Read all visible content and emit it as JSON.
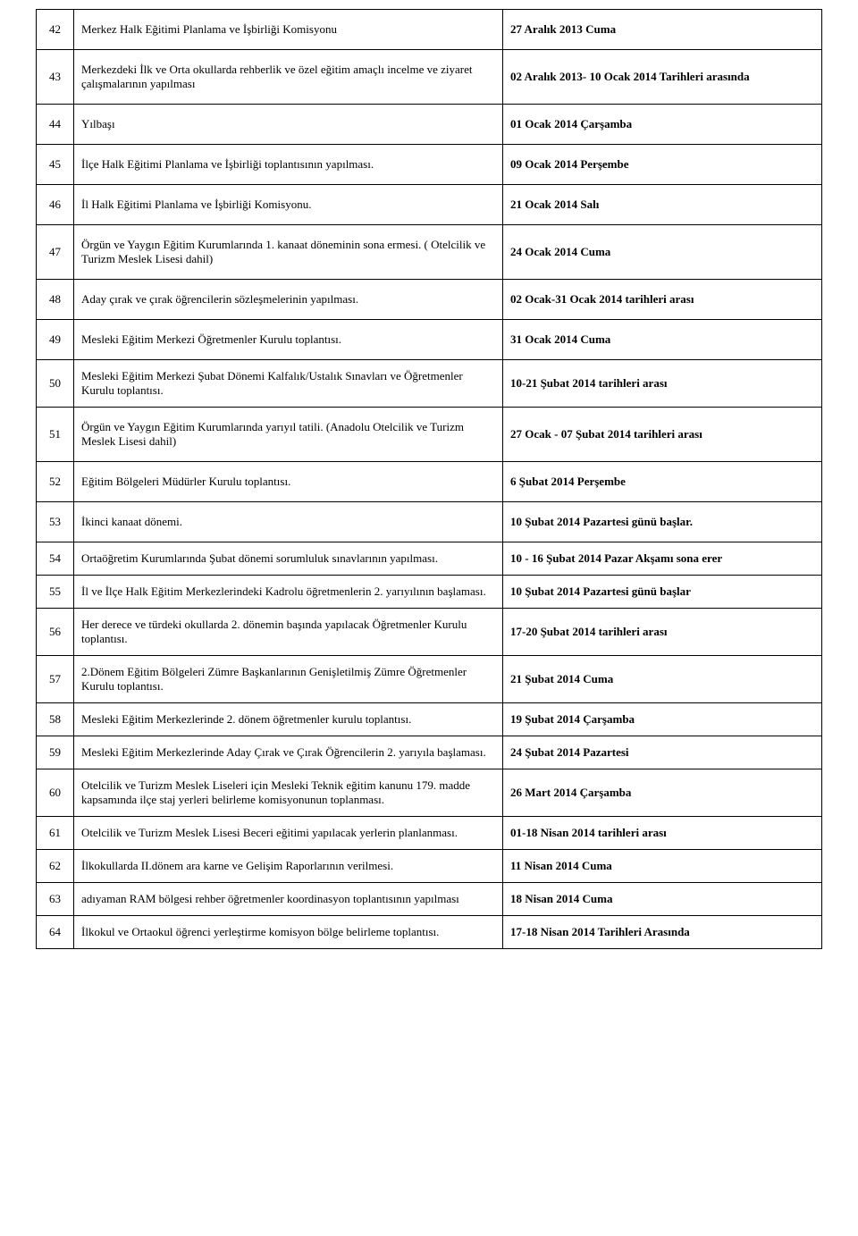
{
  "rows": [
    {
      "n": "42",
      "desc": "Merkez Halk Eğitimi Planlama ve İşbirliği Komisyonu",
      "date": "27 Aralık 2013 Cuma"
    },
    {
      "n": "43",
      "desc": "Merkezdeki İlk ve Orta okullarda  rehberlik ve özel eğitim amaçlı incelme ve ziyaret çalışmalarının yapılması",
      "date": "02 Aralık 2013- 10 Ocak 2014 Tarihleri arasında"
    },
    {
      "n": "44",
      "desc": "Yılbaşı",
      "date": "01 Ocak 2014 Çarşamba"
    },
    {
      "n": "45",
      "desc": "İlçe Halk Eğitimi Planlama ve İşbirliği toplantısının yapılması.",
      "date": "09 Ocak 2014 Perşembe"
    },
    {
      "n": "46",
      "desc": "İl Halk Eğitimi Planlama ve İşbirliği Komisyonu.",
      "date": "21 Ocak 2014 Salı"
    },
    {
      "n": "47",
      "desc": "Örgün ve Yaygın Eğitim Kurumlarında 1. kanaat döneminin sona ermesi. ( Otelcilik ve Turizm Meslek Lisesi dahil)",
      "date": "24 Ocak 2014 Cuma"
    },
    {
      "n": "48",
      "desc": "Aday çırak ve çırak öğrencilerin sözleşmelerinin yapılması.",
      "date": "02 Ocak-31 Ocak 2014 tarihleri arası"
    },
    {
      "n": "49",
      "desc": "Mesleki Eğitim Merkezi Öğretmenler Kurulu toplantısı.",
      "date": "31 Ocak 2014 Cuma"
    },
    {
      "n": "50",
      "desc": "Mesleki Eğitim Merkezi Şubat Dönemi Kalfalık/Ustalık Sınavları ve Öğretmenler Kurulu toplantısı.",
      "date": "10-21 Şubat 2014 tarihleri arası"
    },
    {
      "n": "51",
      "desc": "Örgün ve Yaygın Eğitim Kurumlarında yarıyıl tatili. (Anadolu Otelcilik ve Turizm Meslek Lisesi dahil)",
      "date": "27 Ocak - 07 Şubat 2014 tarihleri arası"
    },
    {
      "n": "52",
      "desc": "Eğitim Bölgeleri Müdürler Kurulu toplantısı.",
      "date": "6 Şubat 2014 Perşembe"
    },
    {
      "n": "53",
      "desc": "İkinci kanaat dönemi.",
      "date": "10 Şubat 2014 Pazartesi günü başlar."
    },
    {
      "n": "54",
      "desc": "Ortaöğretim Kurumlarında Şubat dönemi sorumluluk sınavlarının yapılması.",
      "date": "10 - 16 Şubat 2014 Pazar Akşamı sona erer"
    },
    {
      "n": "55",
      "desc": "İl ve İlçe Halk Eğitim Merkezlerindeki Kadrolu öğretmenlerin 2. yarıyılının başlaması.",
      "date": "10 Şubat 2014 Pazartesi günü başlar"
    },
    {
      "n": "56",
      "desc": "Her derece ve türdeki okullarda 2. dönemin başında yapılacak Öğretmenler Kurulu toplantısı.",
      "date": "17-20 Şubat 2014 tarihleri arası"
    },
    {
      "n": "57",
      "desc": "2.Dönem Eğitim Bölgeleri Zümre Başkanlarının Genişletilmiş Zümre Öğretmenler Kurulu toplantısı.",
      "date": "21 Şubat 2014 Cuma"
    },
    {
      "n": "58",
      "desc": "Mesleki Eğitim Merkezlerinde 2. dönem öğretmenler kurulu toplantısı.",
      "date": "19 Şubat 2014 Çarşamba"
    },
    {
      "n": "59",
      "desc": "Mesleki Eğitim Merkezlerinde Aday Çırak ve Çırak Öğrencilerin 2. yarıyıla başlaması.",
      "date": "24 Şubat 2014 Pazartesi"
    },
    {
      "n": "60",
      "desc": "Otelcilik ve Turizm Meslek Liseleri için Mesleki Teknik eğitim kanunu 179. madde kapsamında ilçe staj yerleri belirleme komisyonunun toplanması.",
      "date": "26 Mart 2014 Çarşamba"
    },
    {
      "n": "61",
      "desc": "Otelcilik ve Turizm Meslek Lisesi Beceri eğitimi yapılacak yerlerin planlanması.",
      "date": "01-18 Nisan 2014 tarihleri arası"
    },
    {
      "n": "62",
      "desc": "İlkokullarda II.dönem ara karne ve Gelişim Raporlarının verilmesi.",
      "date": "11 Nisan 2014 Cuma"
    },
    {
      "n": "63",
      "desc": "adıyaman RAM  bölgesi rehber öğretmenler koordinasyon toplantısının yapılması",
      "date": "18 Nisan 2014 Cuma"
    },
    {
      "n": "64",
      "desc": "İlkokul ve Ortaokul öğrenci yerleştirme komisyon bölge belirleme toplantısı.",
      "date": "17-18 Nisan 2014 Tarihleri Arasında"
    }
  ],
  "bold_dates": {
    "42": true,
    "43": true,
    "44": true,
    "45": true,
    "46": true,
    "47": true,
    "48": true,
    "49": true,
    "50": true,
    "51": true,
    "52": true,
    "53": true,
    "54": true,
    "55": true,
    "56": true,
    "57": true,
    "58": true,
    "59": true,
    "60": true,
    "61": true,
    "62": true,
    "63": true,
    "64": true
  },
  "gap_after": [
    "42",
    "43",
    "44",
    "45",
    "46",
    "47",
    "48",
    "49",
    "51",
    "52",
    "53"
  ]
}
